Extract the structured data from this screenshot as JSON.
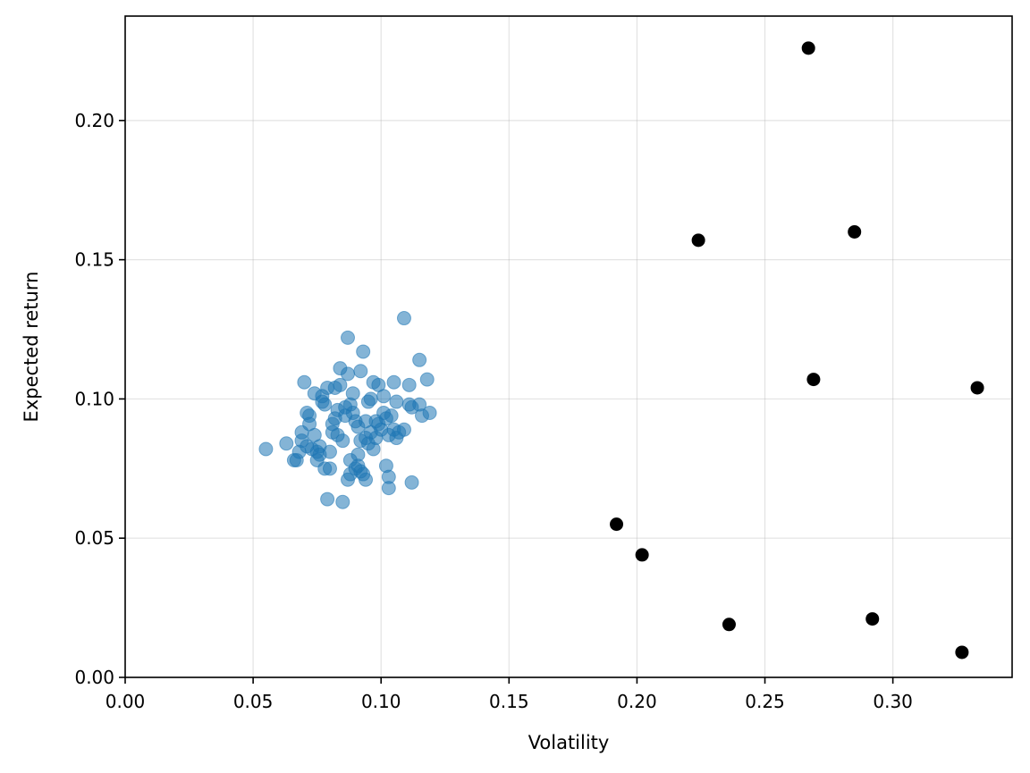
{
  "chart_data": {
    "type": "scatter",
    "title": "",
    "xlabel": "Volatility",
    "ylabel": "Expected return",
    "xlim": [
      0.0,
      0.3466
    ],
    "ylim": [
      0.0,
      0.2375
    ],
    "xticks": [
      0.0,
      0.05,
      0.1,
      0.15,
      0.2,
      0.25,
      0.3
    ],
    "xtick_labels": [
      "0.00",
      "0.05",
      "0.10",
      "0.15",
      "0.20",
      "0.25",
      "0.30"
    ],
    "yticks": [
      0.0,
      0.05,
      0.1,
      0.15,
      0.2
    ],
    "ytick_labels": [
      "0.00",
      "0.05",
      "0.10",
      "0.15",
      "0.20"
    ],
    "grid": true,
    "legend": "none",
    "series": [
      {
        "color": "#1f77b4",
        "alpha": 0.55,
        "marker": "circle",
        "points": [
          [
            0.055,
            0.082
          ],
          [
            0.063,
            0.084
          ],
          [
            0.066,
            0.078
          ],
          [
            0.067,
            0.078
          ],
          [
            0.068,
            0.081
          ],
          [
            0.069,
            0.088
          ],
          [
            0.069,
            0.085
          ],
          [
            0.07,
            0.106
          ],
          [
            0.071,
            0.095
          ],
          [
            0.071,
            0.083
          ],
          [
            0.072,
            0.094
          ],
          [
            0.072,
            0.091
          ],
          [
            0.073,
            0.082
          ],
          [
            0.074,
            0.087
          ],
          [
            0.074,
            0.102
          ],
          [
            0.075,
            0.081
          ],
          [
            0.075,
            0.078
          ],
          [
            0.076,
            0.083
          ],
          [
            0.076,
            0.08
          ],
          [
            0.077,
            0.099
          ],
          [
            0.077,
            0.101
          ],
          [
            0.078,
            0.075
          ],
          [
            0.078,
            0.098
          ],
          [
            0.079,
            0.064
          ],
          [
            0.079,
            0.104
          ],
          [
            0.08,
            0.081
          ],
          [
            0.08,
            0.075
          ],
          [
            0.081,
            0.091
          ],
          [
            0.081,
            0.088
          ],
          [
            0.082,
            0.104
          ],
          [
            0.082,
            0.093
          ],
          [
            0.083,
            0.087
          ],
          [
            0.083,
            0.096
          ],
          [
            0.084,
            0.111
          ],
          [
            0.084,
            0.105
          ],
          [
            0.085,
            0.063
          ],
          [
            0.085,
            0.085
          ],
          [
            0.086,
            0.094
          ],
          [
            0.086,
            0.097
          ],
          [
            0.087,
            0.071
          ],
          [
            0.087,
            0.109
          ],
          [
            0.087,
            0.122
          ],
          [
            0.088,
            0.078
          ],
          [
            0.088,
            0.073
          ],
          [
            0.088,
            0.098
          ],
          [
            0.089,
            0.095
          ],
          [
            0.089,
            0.102
          ],
          [
            0.09,
            0.075
          ],
          [
            0.09,
            0.092
          ],
          [
            0.091,
            0.08
          ],
          [
            0.091,
            0.09
          ],
          [
            0.091,
            0.076
          ],
          [
            0.092,
            0.11
          ],
          [
            0.092,
            0.085
          ],
          [
            0.092,
            0.074
          ],
          [
            0.093,
            0.073
          ],
          [
            0.093,
            0.117
          ],
          [
            0.094,
            0.071
          ],
          [
            0.094,
            0.092
          ],
          [
            0.094,
            0.086
          ],
          [
            0.095,
            0.099
          ],
          [
            0.095,
            0.084
          ],
          [
            0.096,
            0.088
          ],
          [
            0.096,
            0.1
          ],
          [
            0.097,
            0.082
          ],
          [
            0.097,
            0.106
          ],
          [
            0.098,
            0.092
          ],
          [
            0.098,
            0.086
          ],
          [
            0.099,
            0.091
          ],
          [
            0.099,
            0.105
          ],
          [
            0.1,
            0.089
          ],
          [
            0.101,
            0.101
          ],
          [
            0.101,
            0.095
          ],
          [
            0.102,
            0.076
          ],
          [
            0.102,
            0.093
          ],
          [
            0.103,
            0.072
          ],
          [
            0.103,
            0.068
          ],
          [
            0.103,
            0.087
          ],
          [
            0.104,
            0.094
          ],
          [
            0.105,
            0.106
          ],
          [
            0.105,
            0.089
          ],
          [
            0.106,
            0.099
          ],
          [
            0.106,
            0.086
          ],
          [
            0.107,
            0.088
          ],
          [
            0.109,
            0.089
          ],
          [
            0.109,
            0.129
          ],
          [
            0.111,
            0.105
          ],
          [
            0.111,
            0.098
          ],
          [
            0.112,
            0.07
          ],
          [
            0.112,
            0.097
          ],
          [
            0.115,
            0.114
          ],
          [
            0.115,
            0.098
          ],
          [
            0.116,
            0.094
          ],
          [
            0.118,
            0.107
          ],
          [
            0.119,
            0.095
          ]
        ]
      },
      {
        "color": "#000000",
        "alpha": 1.0,
        "marker": "circle",
        "points": [
          [
            0.192,
            0.055
          ],
          [
            0.202,
            0.044
          ],
          [
            0.224,
            0.157
          ],
          [
            0.236,
            0.019
          ],
          [
            0.267,
            0.226
          ],
          [
            0.269,
            0.107
          ],
          [
            0.285,
            0.16
          ],
          [
            0.292,
            0.021
          ],
          [
            0.327,
            0.009
          ],
          [
            0.333,
            0.104
          ]
        ]
      }
    ]
  }
}
